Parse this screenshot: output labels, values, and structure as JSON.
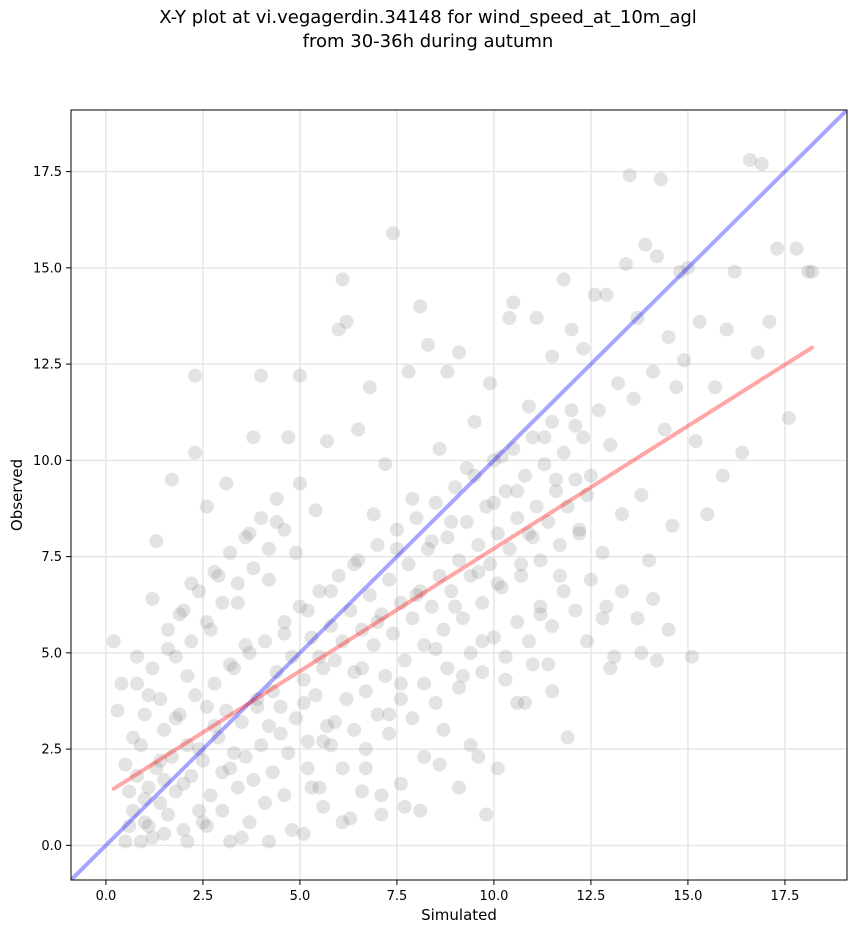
{
  "title_line1": "X-Y plot at vi.vegagerdin.34148 for wind_speed_at_10m_agl",
  "title_line2": "from 30-36h during autumn",
  "chart_data": {
    "type": "scatter",
    "xlabel": "Simulated",
    "ylabel": "Observed",
    "xlim": [
      -0.9,
      19.1
    ],
    "ylim": [
      -0.9,
      19.1
    ],
    "xticks": [
      "0.0",
      "2.5",
      "5.0",
      "7.5",
      "10.0",
      "12.5",
      "15.0",
      "17.5"
    ],
    "yticks": [
      "0.0",
      "2.5",
      "5.0",
      "7.5",
      "10.0",
      "12.5",
      "15.0",
      "17.5"
    ],
    "xtick_values": [
      0,
      2.5,
      5,
      7.5,
      10,
      12.5,
      15,
      17.5
    ],
    "ytick_values": [
      0,
      2.5,
      5,
      7.5,
      10,
      12.5,
      15,
      17.5
    ],
    "grid": true,
    "point_color": "#808080",
    "identity_line": {
      "color": "#0000ff",
      "from": [
        -0.9,
        -0.9
      ],
      "to": [
        19.1,
        19.1
      ]
    },
    "fit_line": {
      "color": "#ff0000",
      "from": [
        0.2,
        1.47
      ],
      "to": [
        18.2,
        12.93
      ]
    },
    "points": [
      [
        0.2,
        5.3
      ],
      [
        0.3,
        3.5
      ],
      [
        0.4,
        4.2
      ],
      [
        0.5,
        2.1
      ],
      [
        0.6,
        0.5
      ],
      [
        0.7,
        2.8
      ],
      [
        0.8,
        4.9
      ],
      [
        0.9,
        0.1
      ],
      [
        1.0,
        1.2
      ],
      [
        1.1,
        3.9
      ],
      [
        1.2,
        6.4
      ],
      [
        1.3,
        7.9
      ],
      [
        1.4,
        2.2
      ],
      [
        1.5,
        0.3
      ],
      [
        1.6,
        5.1
      ],
      [
        1.7,
        9.5
      ],
      [
        1.8,
        3.3
      ],
      [
        1.9,
        6.0
      ],
      [
        2.0,
        1.6
      ],
      [
        2.1,
        4.4
      ],
      [
        2.2,
        6.8
      ],
      [
        2.3,
        12.2
      ],
      [
        2.3,
        10.2
      ],
      [
        2.4,
        2.5
      ],
      [
        2.5,
        0.6
      ],
      [
        2.6,
        8.8
      ],
      [
        2.7,
        5.6
      ],
      [
        2.8,
        3.1
      ],
      [
        2.9,
        7.0
      ],
      [
        3.0,
        1.9
      ],
      [
        3.1,
        9.4
      ],
      [
        3.2,
        4.7
      ],
      [
        3.3,
        2.4
      ],
      [
        3.4,
        6.3
      ],
      [
        3.5,
        0.2
      ],
      [
        3.6,
        5.2
      ],
      [
        3.7,
        8.1
      ],
      [
        3.8,
        10.6
      ],
      [
        3.9,
        3.6
      ],
      [
        4.0,
        12.2
      ],
      [
        4.1,
        1.1
      ],
      [
        4.2,
        6.9
      ],
      [
        4.3,
        4.0
      ],
      [
        4.4,
        8.4
      ],
      [
        4.5,
        2.9
      ],
      [
        4.6,
        5.5
      ],
      [
        4.7,
        10.6
      ],
      [
        4.8,
        0.4
      ],
      [
        4.9,
        7.6
      ],
      [
        5.0,
        12.2
      ],
      [
        5.0,
        9.4
      ],
      [
        5.1,
        3.7
      ],
      [
        5.2,
        6.1
      ],
      [
        5.3,
        1.5
      ],
      [
        5.4,
        8.7
      ],
      [
        5.5,
        4.9
      ],
      [
        5.6,
        2.7
      ],
      [
        5.7,
        10.5
      ],
      [
        5.8,
        6.6
      ],
      [
        5.9,
        3.2
      ],
      [
        6.0,
        13.4
      ],
      [
        6.1,
        14.7
      ],
      [
        6.2,
        13.6
      ],
      [
        6.3,
        0.7
      ],
      [
        6.4,
        7.3
      ],
      [
        6.5,
        10.8
      ],
      [
        6.6,
        4.6
      ],
      [
        6.7,
        2.0
      ],
      [
        6.8,
        11.9
      ],
      [
        6.9,
        8.6
      ],
      [
        7.0,
        5.8
      ],
      [
        7.1,
        1.3
      ],
      [
        7.2,
        9.9
      ],
      [
        7.3,
        3.4
      ],
      [
        7.4,
        15.9
      ],
      [
        7.5,
        7.7
      ],
      [
        7.6,
        4.2
      ],
      [
        7.7,
        1.0
      ],
      [
        7.8,
        12.3
      ],
      [
        7.9,
        9.0
      ],
      [
        8.0,
        6.5
      ],
      [
        8.1,
        14.0
      ],
      [
        8.2,
        2.3
      ],
      [
        8.3,
        13.0
      ],
      [
        8.4,
        7.9
      ],
      [
        8.5,
        5.1
      ],
      [
        8.6,
        10.3
      ],
      [
        8.7,
        3.0
      ],
      [
        8.8,
        12.3
      ],
      [
        8.9,
        8.4
      ],
      [
        9.0,
        6.2
      ],
      [
        9.1,
        12.8
      ],
      [
        9.2,
        4.4
      ],
      [
        9.3,
        9.8
      ],
      [
        9.4,
        2.6
      ],
      [
        9.5,
        11.0
      ],
      [
        9.6,
        7.1
      ],
      [
        9.7,
        5.3
      ],
      [
        9.8,
        0.8
      ],
      [
        9.9,
        12.0
      ],
      [
        10.0,
        8.9
      ],
      [
        10.1,
        6.8
      ],
      [
        10.2,
        10.1
      ],
      [
        10.3,
        4.3
      ],
      [
        10.4,
        13.7
      ],
      [
        10.5,
        14.1
      ],
      [
        10.6,
        9.2
      ],
      [
        10.7,
        7.3
      ],
      [
        10.8,
        3.7
      ],
      [
        10.9,
        11.4
      ],
      [
        11.0,
        8.0
      ],
      [
        11.1,
        13.7
      ],
      [
        11.2,
        6.0
      ],
      [
        11.3,
        10.6
      ],
      [
        11.4,
        4.7
      ],
      [
        11.5,
        12.7
      ],
      [
        11.6,
        9.5
      ],
      [
        11.7,
        7.0
      ],
      [
        11.8,
        14.7
      ],
      [
        11.9,
        2.8
      ],
      [
        12.0,
        13.4
      ],
      [
        12.1,
        10.9
      ],
      [
        12.2,
        8.2
      ],
      [
        12.3,
        12.9
      ],
      [
        12.4,
        5.3
      ],
      [
        12.5,
        9.6
      ],
      [
        12.6,
        14.3
      ],
      [
        12.7,
        11.3
      ],
      [
        12.8,
        7.6
      ],
      [
        12.9,
        14.3
      ],
      [
        13.0,
        10.4
      ],
      [
        13.1,
        4.9
      ],
      [
        13.2,
        12.0
      ],
      [
        13.3,
        8.6
      ],
      [
        13.4,
        15.1
      ],
      [
        13.5,
        17.4
      ],
      [
        13.6,
        11.6
      ],
      [
        13.7,
        13.7
      ],
      [
        13.8,
        9.1
      ],
      [
        13.9,
        15.6
      ],
      [
        14.0,
        7.4
      ],
      [
        14.1,
        12.3
      ],
      [
        14.2,
        15.3
      ],
      [
        14.3,
        17.3
      ],
      [
        14.4,
        10.8
      ],
      [
        14.5,
        13.2
      ],
      [
        14.6,
        8.3
      ],
      [
        14.7,
        11.9
      ],
      [
        14.8,
        14.9
      ],
      [
        14.9,
        12.6
      ],
      [
        15.0,
        15.0
      ],
      [
        15.1,
        4.9
      ],
      [
        15.2,
        10.5
      ],
      [
        15.3,
        13.6
      ],
      [
        15.5,
        8.6
      ],
      [
        15.7,
        11.9
      ],
      [
        15.9,
        9.6
      ],
      [
        16.0,
        13.4
      ],
      [
        16.2,
        14.9
      ],
      [
        16.4,
        10.2
      ],
      [
        16.6,
        17.8
      ],
      [
        16.8,
        12.8
      ],
      [
        16.9,
        17.7
      ],
      [
        17.1,
        13.6
      ],
      [
        17.3,
        15.5
      ],
      [
        17.6,
        11.1
      ],
      [
        17.8,
        15.5
      ],
      [
        18.1,
        14.9
      ],
      [
        18.2,
        14.9
      ],
      [
        0.5,
        0.1
      ],
      [
        0.6,
        1.4
      ],
      [
        0.7,
        0.9
      ],
      [
        0.8,
        1.8
      ],
      [
        0.9,
        2.6
      ],
      [
        1.0,
        0.6
      ],
      [
        1.1,
        1.5
      ],
      [
        1.2,
        0.2
      ],
      [
        1.3,
        2.0
      ],
      [
        1.4,
        1.1
      ],
      [
        1.5,
        3.0
      ],
      [
        1.6,
        0.8
      ],
      [
        1.7,
        2.3
      ],
      [
        1.8,
        1.4
      ],
      [
        1.9,
        3.4
      ],
      [
        2.0,
        0.4
      ],
      [
        2.1,
        2.6
      ],
      [
        2.2,
        1.8
      ],
      [
        2.3,
        3.9
      ],
      [
        2.4,
        0.9
      ],
      [
        2.5,
        2.2
      ],
      [
        2.6,
        3.6
      ],
      [
        2.7,
        1.3
      ],
      [
        2.8,
        4.2
      ],
      [
        2.9,
        2.8
      ],
      [
        3.0,
        0.9
      ],
      [
        3.1,
        3.5
      ],
      [
        3.2,
        2.0
      ],
      [
        3.3,
        4.6
      ],
      [
        3.4,
        1.5
      ],
      [
        3.5,
        3.2
      ],
      [
        3.6,
        2.3
      ],
      [
        3.7,
        5.0
      ],
      [
        3.8,
        1.7
      ],
      [
        3.9,
        3.8
      ],
      [
        4.0,
        2.6
      ],
      [
        4.1,
        5.3
      ],
      [
        4.2,
        3.1
      ],
      [
        4.3,
        1.9
      ],
      [
        4.4,
        4.5
      ],
      [
        4.5,
        3.6
      ],
      [
        4.6,
        5.8
      ],
      [
        4.7,
        2.4
      ],
      [
        4.8,
        4.9
      ],
      [
        4.9,
        3.3
      ],
      [
        5.0,
        6.2
      ],
      [
        5.1,
        4.3
      ],
      [
        5.2,
        2.7
      ],
      [
        5.3,
        5.4
      ],
      [
        5.4,
        3.9
      ],
      [
        5.5,
        6.6
      ],
      [
        5.6,
        4.6
      ],
      [
        5.7,
        3.1
      ],
      [
        5.8,
        5.7
      ],
      [
        5.9,
        4.8
      ],
      [
        6.0,
        7.0
      ],
      [
        6.1,
        5.3
      ],
      [
        6.2,
        3.8
      ],
      [
        6.3,
        6.1
      ],
      [
        6.4,
        4.5
      ],
      [
        6.5,
        7.4
      ],
      [
        6.6,
        5.6
      ],
      [
        6.7,
        4.0
      ],
      [
        6.8,
        6.5
      ],
      [
        6.9,
        5.2
      ],
      [
        7.0,
        7.8
      ],
      [
        7.1,
        6.0
      ],
      [
        7.2,
        4.4
      ],
      [
        7.3,
        6.9
      ],
      [
        7.4,
        5.5
      ],
      [
        7.5,
        8.2
      ],
      [
        7.6,
        6.3
      ],
      [
        7.7,
        4.8
      ],
      [
        7.8,
        7.3
      ],
      [
        7.9,
        5.9
      ],
      [
        8.0,
        8.5
      ],
      [
        8.1,
        6.6
      ],
      [
        8.2,
        5.2
      ],
      [
        8.3,
        7.7
      ],
      [
        8.4,
        6.2
      ],
      [
        8.5,
        8.9
      ],
      [
        8.6,
        7.0
      ],
      [
        8.7,
        5.6
      ],
      [
        8.8,
        8.0
      ],
      [
        8.9,
        6.6
      ],
      [
        9.0,
        9.3
      ],
      [
        9.1,
        7.4
      ],
      [
        9.2,
        5.9
      ],
      [
        9.3,
        8.4
      ],
      [
        9.4,
        7.0
      ],
      [
        9.5,
        9.6
      ],
      [
        9.6,
        7.8
      ],
      [
        9.7,
        6.3
      ],
      [
        9.8,
        8.8
      ],
      [
        9.9,
        7.3
      ],
      [
        10.0,
        10.0
      ],
      [
        10.1,
        8.1
      ],
      [
        10.2,
        6.7
      ],
      [
        10.3,
        9.2
      ],
      [
        10.4,
        7.7
      ],
      [
        10.5,
        10.3
      ],
      [
        10.6,
        8.5
      ],
      [
        10.7,
        7.0
      ],
      [
        10.8,
        9.6
      ],
      [
        10.9,
        8.1
      ],
      [
        11.0,
        10.6
      ],
      [
        11.1,
        8.8
      ],
      [
        11.2,
        7.4
      ],
      [
        11.3,
        9.9
      ],
      [
        11.4,
        8.4
      ],
      [
        11.5,
        11.0
      ],
      [
        11.6,
        9.2
      ],
      [
        11.7,
        7.8
      ],
      [
        11.8,
        10.2
      ],
      [
        11.9,
        8.8
      ],
      [
        12.0,
        11.3
      ],
      [
        12.1,
        9.5
      ],
      [
        12.2,
        8.1
      ],
      [
        12.3,
        10.6
      ],
      [
        12.4,
        9.1
      ],
      [
        0.8,
        4.2
      ],
      [
        1.0,
        3.4
      ],
      [
        1.2,
        4.6
      ],
      [
        1.4,
        3.8
      ],
      [
        1.6,
        5.6
      ],
      [
        1.8,
        4.9
      ],
      [
        2.0,
        6.1
      ],
      [
        2.2,
        5.3
      ],
      [
        2.4,
        6.6
      ],
      [
        2.6,
        5.8
      ],
      [
        2.8,
        7.1
      ],
      [
        3.0,
        6.3
      ],
      [
        3.2,
        7.6
      ],
      [
        3.4,
        6.8
      ],
      [
        3.6,
        8.0
      ],
      [
        3.8,
        7.2
      ],
      [
        4.0,
        8.5
      ],
      [
        4.2,
        7.7
      ],
      [
        4.4,
        9.0
      ],
      [
        4.6,
        8.2
      ],
      [
        1.1,
        0.5
      ],
      [
        1.5,
        1.7
      ],
      [
        2.1,
        0.1
      ],
      [
        2.6,
        0.5
      ],
      [
        3.2,
        0.1
      ],
      [
        3.7,
        0.6
      ],
      [
        4.2,
        0.1
      ],
      [
        4.6,
        1.3
      ],
      [
        5.1,
        0.3
      ],
      [
        5.6,
        1.0
      ],
      [
        6.1,
        0.6
      ],
      [
        6.6,
        1.4
      ],
      [
        7.1,
        0.8
      ],
      [
        7.6,
        1.6
      ],
      [
        8.1,
        0.9
      ],
      [
        8.6,
        2.1
      ],
      [
        9.1,
        1.5
      ],
      [
        9.6,
        2.3
      ],
      [
        10.1,
        2.0
      ],
      [
        10.6,
        3.7
      ],
      [
        5.2,
        2.0
      ],
      [
        5.5,
        1.5
      ],
      [
        5.8,
        2.6
      ],
      [
        6.1,
        2.0
      ],
      [
        6.4,
        3.0
      ],
      [
        6.7,
        2.5
      ],
      [
        7.0,
        3.4
      ],
      [
        7.3,
        2.9
      ],
      [
        7.6,
        3.8
      ],
      [
        7.9,
        3.3
      ],
      [
        8.2,
        4.2
      ],
      [
        8.5,
        3.7
      ],
      [
        8.8,
        4.6
      ],
      [
        9.1,
        4.1
      ],
      [
        9.4,
        5.0
      ],
      [
        9.7,
        4.5
      ],
      [
        10.0,
        5.4
      ],
      [
        10.3,
        4.9
      ],
      [
        10.6,
        5.8
      ],
      [
        10.9,
        5.3
      ],
      [
        11.2,
        6.2
      ],
      [
        11.5,
        5.7
      ],
      [
        11.8,
        6.6
      ],
      [
        12.1,
        6.1
      ],
      [
        12.5,
        6.9
      ],
      [
        12.9,
        6.2
      ],
      [
        13.3,
        6.6
      ],
      [
        13.7,
        5.9
      ],
      [
        14.1,
        6.4
      ],
      [
        14.5,
        5.6
      ],
      [
        13.0,
        4.6
      ],
      [
        13.8,
        5.0
      ],
      [
        14.2,
        4.8
      ],
      [
        11.5,
        4.0
      ],
      [
        11.0,
        4.7
      ],
      [
        12.8,
        5.9
      ]
    ]
  }
}
